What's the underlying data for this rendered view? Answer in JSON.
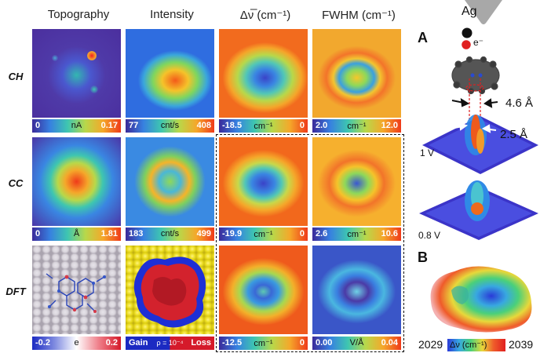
{
  "columns": [
    "Topography",
    "Intensity",
    "Δν̅ (cm⁻¹)",
    "FWHM (cm⁻¹)"
  ],
  "rows": [
    "CH",
    "CC",
    "DFT"
  ],
  "colorbars": [
    [
      {
        "min": "0",
        "unit": "nA",
        "max": "0.17"
      },
      {
        "min": "77",
        "unit": "cnt/s",
        "max": "408"
      },
      {
        "min": "-18.5",
        "unit": "cm⁻¹",
        "max": "0"
      },
      {
        "min": "2.0",
        "unit": "cm⁻¹",
        "max": "12.0"
      }
    ],
    [
      {
        "min": "0",
        "unit": "Å",
        "max": "1.81"
      },
      {
        "min": "183",
        "unit": "cnt/s",
        "max": "499"
      },
      {
        "min": "-19.9",
        "unit": "cm⁻¹",
        "max": "0"
      },
      {
        "min": "2.6",
        "unit": "cm⁻¹",
        "max": "10.6"
      }
    ],
    [
      {
        "min": "-0.2",
        "unit": "e",
        "max": "0.2"
      },
      {
        "min": "Gain",
        "unit": "ρ = 10⁻⁴",
        "max": "Loss"
      },
      {
        "min": "-12.5",
        "unit": "cm⁻¹",
        "max": "0"
      },
      {
        "min": "0.00",
        "unit": "V/Å",
        "max": "0.04"
      }
    ]
  ],
  "panelA": {
    "letter": "A",
    "tip": "Ag",
    "electron": "e⁻",
    "d1": "4.6 Å",
    "d2": "2.5 Å",
    "v1": "1 V",
    "v2": "0.8 V"
  },
  "panelB": {
    "letter": "B",
    "scale_min": "2029",
    "scale_label": "Δν (cm⁻¹)",
    "scale_max": "2039"
  }
}
